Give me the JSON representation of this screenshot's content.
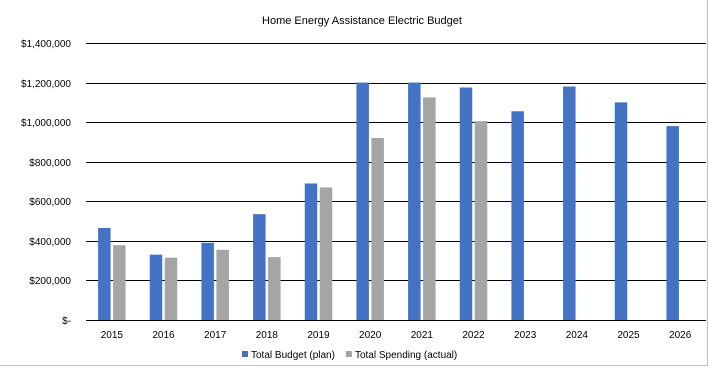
{
  "chart_data": {
    "type": "bar",
    "title": "Home Energy Assistance Electric Budget",
    "xlabel": "",
    "ylabel": "",
    "categories": [
      "2015",
      "2016",
      "2017",
      "2018",
      "2019",
      "2020",
      "2021",
      "2022",
      "2023",
      "2024",
      "2025",
      "2026"
    ],
    "series": [
      {
        "name": "Total Budget (plan)",
        "color": "#4472c4",
        "values": [
          465000,
          330000,
          390000,
          535000,
          690000,
          1200000,
          1200000,
          1175000,
          1055000,
          1180000,
          1100000,
          980000
        ]
      },
      {
        "name": "Total Spending (actual)",
        "color": "#a5a5a5",
        "values": [
          378000,
          315000,
          355000,
          318000,
          670000,
          920000,
          1125000,
          1005000,
          null,
          null,
          null,
          null
        ]
      }
    ],
    "ylim": [
      0,
      1400000
    ],
    "yticks": [
      0,
      200000,
      400000,
      600000,
      800000,
      1000000,
      1200000,
      1400000
    ],
    "ytick_labels": [
      "$-",
      "$200,000",
      "$400,000",
      "$600,000",
      "$800,000",
      "$1,000,000",
      "$1,200,000",
      "$1,400,000"
    ],
    "grid": true,
    "legend_position": "bottom"
  }
}
